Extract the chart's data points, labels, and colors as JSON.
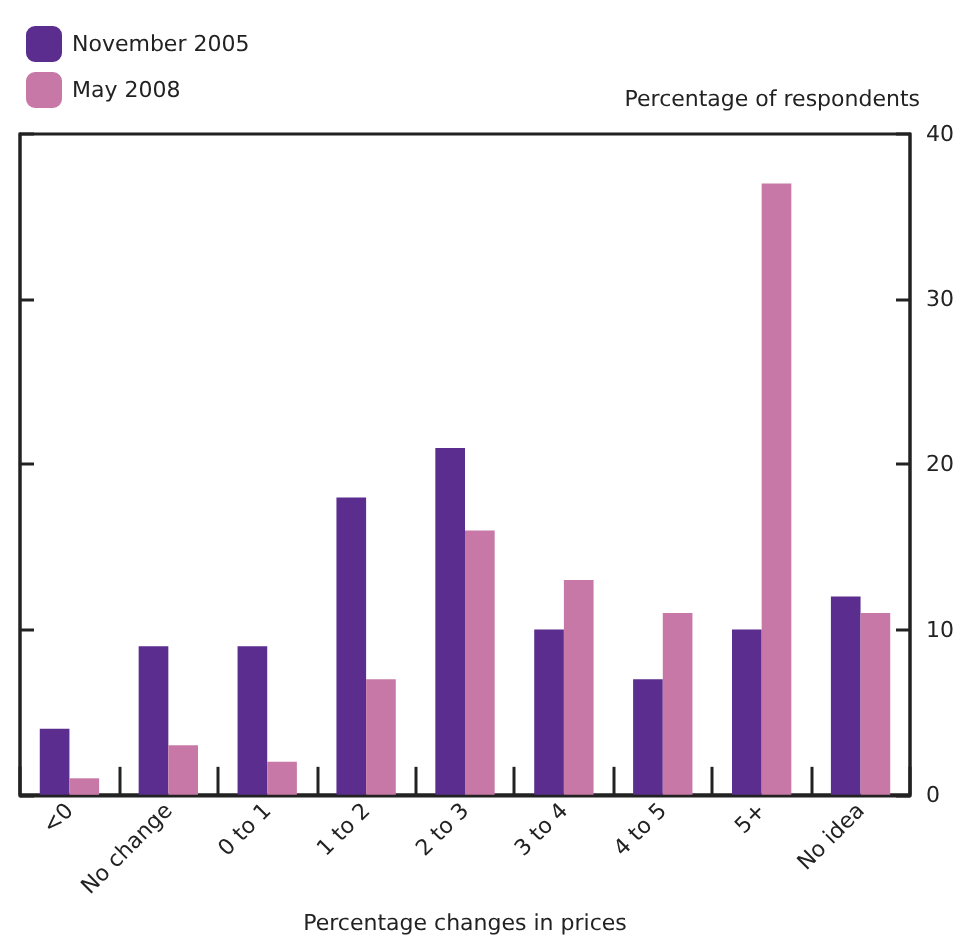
{
  "chart_data": {
    "type": "bar",
    "xlabel": "Percentage changes in prices",
    "ylabel": "Percentage of respondents",
    "categories": [
      "<0",
      "No change",
      "0 to 1",
      "1 to 2",
      "2 to 3",
      "3 to 4",
      "4 to 5",
      "5+",
      "No idea"
    ],
    "series": [
      {
        "name": "November 2005",
        "color": "#5b2d8e",
        "values": [
          4,
          9,
          9,
          18,
          21,
          10,
          7,
          10,
          12
        ]
      },
      {
        "name": "May 2008",
        "color": "#c878a6",
        "values": [
          1,
          3,
          2,
          7,
          16,
          13,
          11,
          37,
          11
        ]
      }
    ],
    "ylim": [
      0,
      40
    ],
    "yticks": [
      0,
      10,
      20,
      30,
      40
    ],
    "grid": false,
    "legend": "top left"
  }
}
